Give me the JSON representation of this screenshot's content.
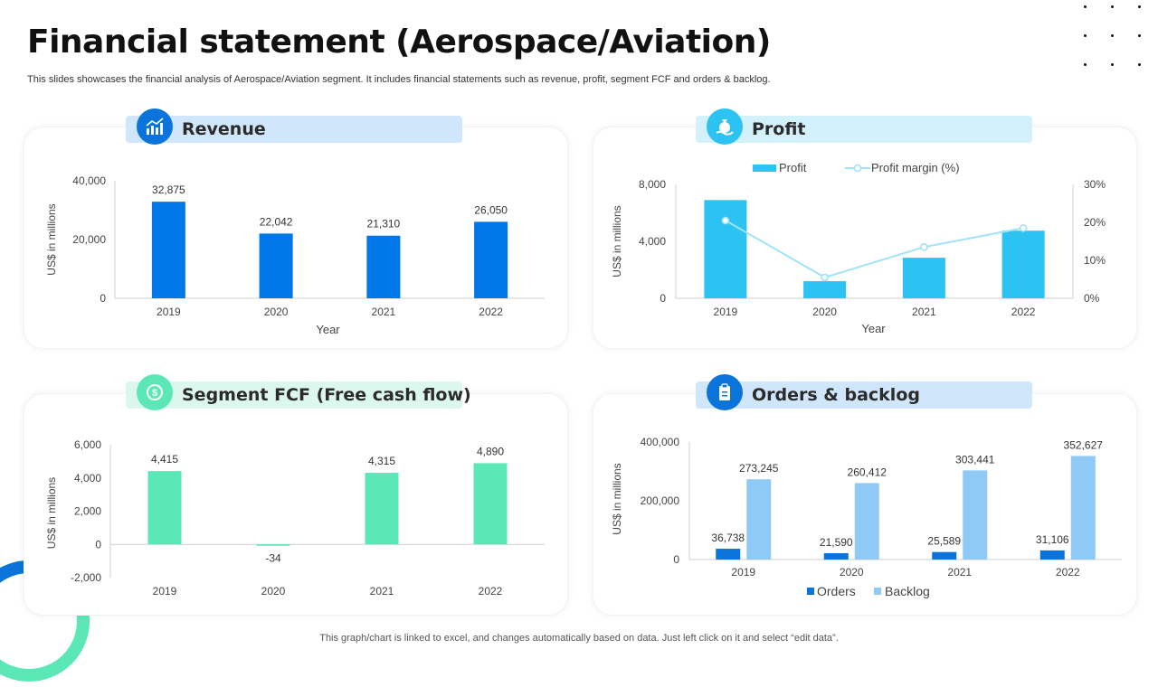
{
  "header": {
    "title": "Financial statement (Aerospace/Aviation)",
    "subtitle": "This slides showcases the financial analysis of Aerospace/Aviation segment. It includes financial statements such as revenue, profit, segment FCF and orders & backlog."
  },
  "footer": {
    "note": "This graph/chart is linked to excel, and changes automatically based on data. Just left click on it and select “edit data”."
  },
  "colors": {
    "revenue": "#0077e6",
    "profit": "#2cc3f2",
    "fcf": "#5be8b6",
    "orders": "#0a74da",
    "backlog": "#8fcaf7",
    "pill_blue": "#cfe6fb",
    "pill_cyan": "#d3f1fb",
    "pill_green": "#dcf7ee"
  },
  "chart_data": [
    {
      "id": "revenue",
      "type": "bar",
      "title": "Revenue",
      "icon": "revenue-chart-icon",
      "categories": [
        "2019",
        "2020",
        "2021",
        "2022"
      ],
      "values": [
        32875,
        22042,
        21310,
        26050
      ],
      "value_labels": [
        "32,875",
        "22,042",
        "21,310",
        "26,050"
      ],
      "ylim": [
        0,
        40000
      ],
      "yticks": [
        0,
        20000,
        40000
      ],
      "ytick_labels": [
        "0",
        "20,000",
        "40,000"
      ],
      "xlabel": "Year",
      "ylabel": "US$ in millions"
    },
    {
      "id": "profit",
      "type": "bar",
      "title": "Profit",
      "icon": "money-bag-icon",
      "categories": [
        "2019",
        "2020",
        "2021",
        "2022"
      ],
      "series": [
        {
          "name": "Profit",
          "type": "bar",
          "values": [
            6900,
            1200,
            2850,
            4750
          ]
        },
        {
          "name": "Profit margin (%)",
          "type": "line",
          "axis": "secondary",
          "values": [
            20.5,
            5.5,
            13.5,
            18.5
          ]
        }
      ],
      "ylim": [
        0,
        8000
      ],
      "yticks": [
        0,
        4000,
        8000
      ],
      "ytick_labels": [
        "0",
        "4,000",
        "8,000"
      ],
      "y2lim": [
        0,
        30
      ],
      "y2ticks": [
        0,
        10,
        20,
        30
      ],
      "y2tick_labels": [
        "0%",
        "10%",
        "20%",
        "30%"
      ],
      "xlabel": "Year",
      "ylabel": "US$ in millions"
    },
    {
      "id": "fcf",
      "type": "bar",
      "title": "Segment FCF (Free cash flow)",
      "icon": "cash-flow-icon",
      "categories": [
        "2019",
        "2020",
        "2021",
        "2022"
      ],
      "values": [
        4415,
        -34,
        4315,
        4890
      ],
      "value_labels": [
        "4,415",
        "-34",
        "4,315",
        "4,890"
      ],
      "ylim": [
        -2000,
        6000
      ],
      "yticks": [
        -2000,
        0,
        2000,
        4000,
        6000
      ],
      "ytick_labels": [
        "-2,000",
        "0",
        "2,000",
        "4,000",
        "6,000"
      ],
      "xlabel": "",
      "ylabel": "US$ in millions"
    },
    {
      "id": "orders",
      "type": "bar",
      "title": "Orders & backlog",
      "icon": "clipboard-icon",
      "categories": [
        "2019",
        "2020",
        "2021",
        "2022"
      ],
      "series": [
        {
          "name": "Orders",
          "values": [
            36738,
            21590,
            25589,
            31106
          ],
          "labels": [
            "36,738",
            "21,590",
            "25,589",
            "31,106"
          ]
        },
        {
          "name": "Backlog",
          "values": [
            273245,
            260412,
            303441,
            352627
          ],
          "labels": [
            "273,245",
            "260,412",
            "303,441",
            "352,627"
          ]
        }
      ],
      "ylim": [
        0,
        400000
      ],
      "yticks": [
        0,
        200000,
        400000
      ],
      "ytick_labels": [
        "0",
        "200,000",
        "400,000"
      ],
      "xlabel": "",
      "ylabel": "US$ in millions",
      "legend": "bottom"
    }
  ]
}
